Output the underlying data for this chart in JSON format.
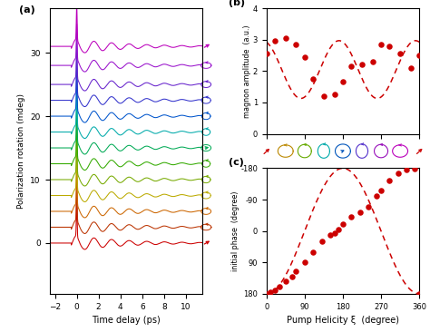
{
  "panel_a": {
    "n_traces": 13,
    "offsets": [
      0,
      2.5,
      5,
      7.5,
      10,
      12.5,
      15,
      17.5,
      20,
      22.5,
      25,
      28,
      31
    ],
    "colors": [
      "#cc0000",
      "#bb3300",
      "#cc6600",
      "#bbaa00",
      "#77aa00",
      "#33aa00",
      "#00aa55",
      "#00aaaa",
      "#0055cc",
      "#3333cc",
      "#6622cc",
      "#9911cc",
      "#bb00bb"
    ],
    "xlabel": "Time delay (ps)",
    "ylabel": "Polarization rotation (mdeg)",
    "xlim": [
      -2.5,
      11.5
    ],
    "ylim": [
      -8,
      37
    ],
    "yticks": [
      0,
      10,
      20,
      30
    ],
    "xticks": [
      -2,
      0,
      2,
      4,
      6,
      8,
      10
    ]
  },
  "panel_b": {
    "xi_data": [
      0,
      20,
      45,
      70,
      90,
      110,
      135,
      160,
      180,
      200,
      225,
      250,
      270,
      290,
      315,
      340,
      360
    ],
    "amp_data": [
      2.55,
      2.95,
      3.05,
      2.85,
      2.45,
      1.75,
      1.2,
      1.25,
      1.65,
      2.15,
      2.2,
      2.3,
      2.85,
      2.8,
      2.55,
      2.1,
      2.5
    ],
    "amp_fit_A": 2.05,
    "amp_fit_B": 0.92,
    "amp_fit_phi_deg": 18,
    "ylabel": "magnon amplitude  (a.u.)",
    "xlim": [
      0,
      360
    ],
    "ylim": [
      0,
      4
    ],
    "yticks": [
      0,
      1,
      2,
      3,
      4
    ],
    "xticks": [
      0,
      90,
      180,
      270,
      360
    ]
  },
  "panel_c": {
    "xi_data": [
      0,
      10,
      20,
      30,
      45,
      60,
      70,
      90,
      110,
      130,
      150,
      160,
      170,
      180,
      200,
      220,
      240,
      260,
      270,
      290,
      310,
      330,
      350,
      360
    ],
    "phase_data": [
      180,
      175,
      170,
      160,
      145,
      130,
      115,
      90,
      60,
      30,
      10,
      5,
      -5,
      -20,
      -40,
      -55,
      -70,
      -100,
      -115,
      -145,
      -165,
      -175,
      -178,
      180
    ],
    "ylabel": "initial phase  (degree)",
    "xlabel": "Pump Helicity ξ  (degree)",
    "xlim": [
      0,
      360
    ],
    "ylim": [
      -180,
      180
    ],
    "yticks": [
      -180,
      -90,
      0,
      90,
      180
    ],
    "ytick_labels": [
      "-180",
      "-90",
      "0",
      "90",
      "180"
    ],
    "xticks": [
      0,
      90,
      180,
      270,
      360
    ]
  },
  "dot_color": "#cc0000",
  "dot_size": 22,
  "line_color": "#cc0000",
  "bg_color": "#ffffff",
  "label_a": "(a)",
  "label_b": "(b)",
  "label_c": "(c)",
  "icon_colors": [
    "#cc0000",
    "#bb8800",
    "#66aa00",
    "#00aaaa",
    "#0055bb",
    "#5533cc",
    "#9911bb",
    "#bb00bb",
    "#cc0000"
  ],
  "icon_xi": [
    0,
    45,
    90,
    135,
    180,
    225,
    270,
    315,
    360
  ]
}
